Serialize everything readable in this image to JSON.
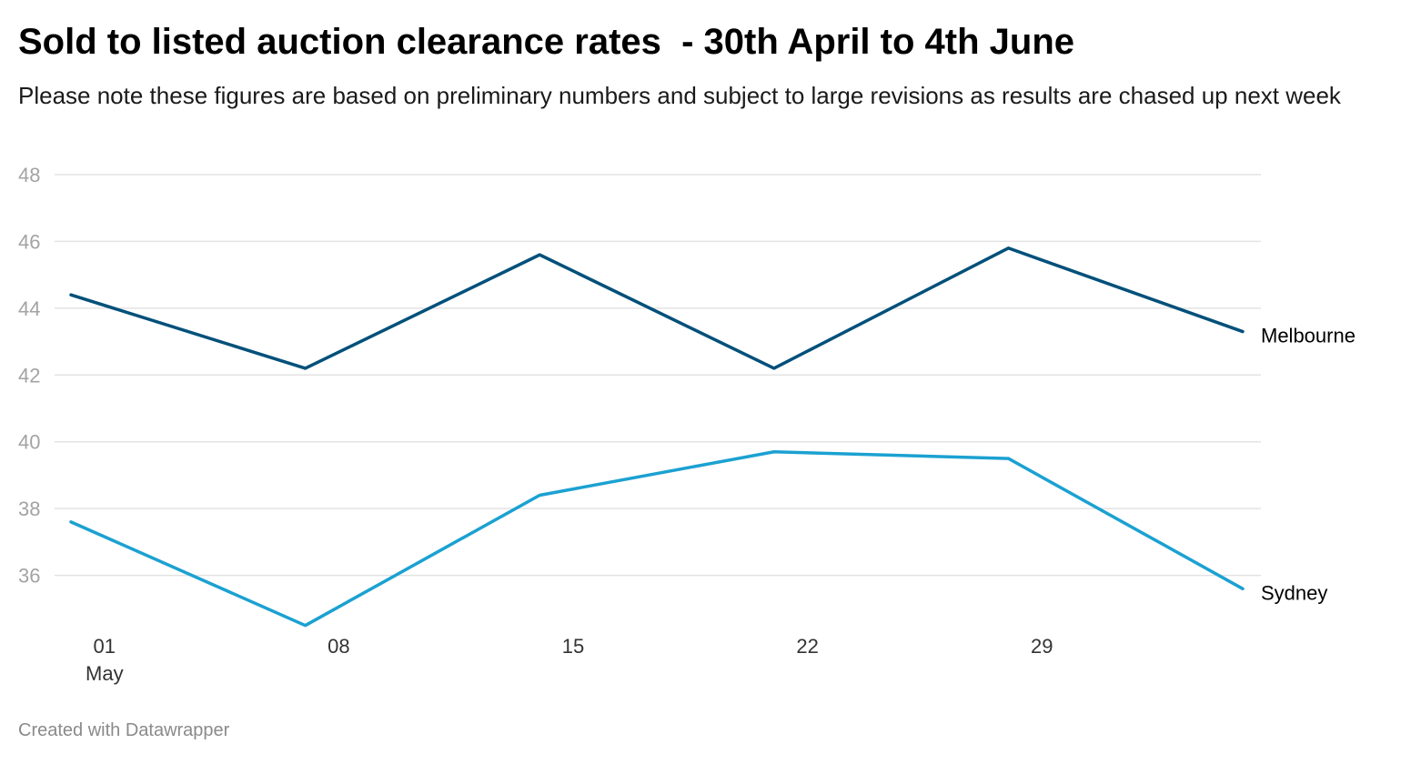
{
  "header": {
    "title": "Sold to listed auction clearance rates  - 30th April to 4th June",
    "subtitle": "Please note these figures are based on preliminary numbers and subject to large revisions as results are chased up next week"
  },
  "footer": {
    "credit": "Created with Datawrapper"
  },
  "chart_data": {
    "type": "line",
    "title": "Sold to listed auction clearance rates  - 30th April to 4th June",
    "subtitle": "Please note these figures are based on preliminary numbers and subject to large revisions as results are chased up next week",
    "x": [
      "2022-04-30",
      "2022-05-07",
      "2022-05-14",
      "2022-05-21",
      "2022-05-28",
      "2022-06-04"
    ],
    "x_ticks": [
      {
        "date": "2022-05-01",
        "label": "01",
        "sublabel": "May"
      },
      {
        "date": "2022-05-08",
        "label": "08",
        "sublabel": ""
      },
      {
        "date": "2022-05-15",
        "label": "15",
        "sublabel": ""
      },
      {
        "date": "2022-05-22",
        "label": "22",
        "sublabel": ""
      },
      {
        "date": "2022-05-29",
        "label": "29",
        "sublabel": ""
      }
    ],
    "y_ticks": [
      36,
      38,
      40,
      42,
      44,
      46,
      48
    ],
    "ylim": [
      34.6,
      48
    ],
    "grid": true,
    "legend": "direct labels at line ends",
    "series": [
      {
        "name": "Melbourne",
        "color": "#00507a",
        "values": [
          44.4,
          42.2,
          45.6,
          42.2,
          45.8,
          43.3
        ]
      },
      {
        "name": "Sydney",
        "color": "#1ba1d1",
        "values": [
          37.6,
          34.5,
          38.4,
          39.7,
          39.5,
          35.6
        ]
      }
    ]
  }
}
